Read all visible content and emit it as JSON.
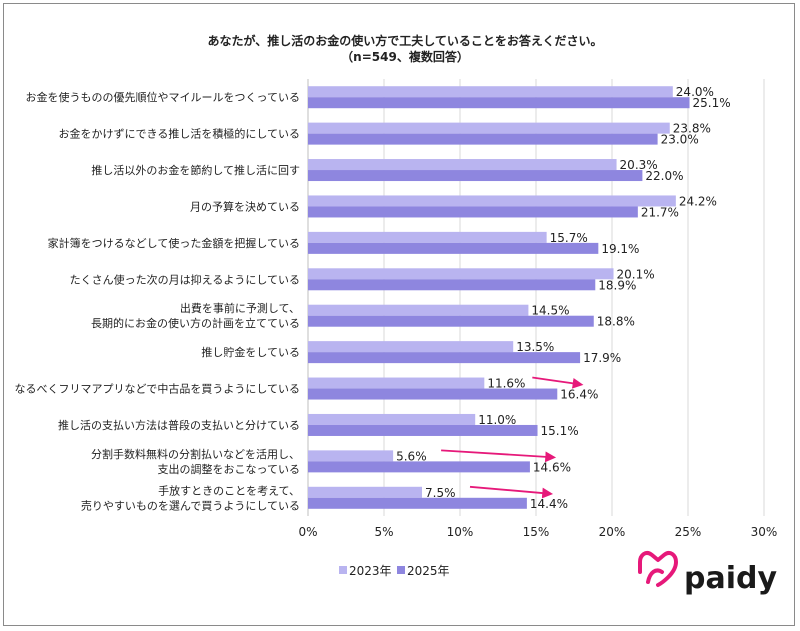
{
  "chart_data": {
    "type": "bar",
    "orientation": "horizontal",
    "title": "あなたが、推し活のお金の使い方で工夫していることをお答えください。",
    "subtitle": "（n=549、複数回答）",
    "categories": [
      [
        "お金を使うものの優先順位やマイルールをつくっている"
      ],
      [
        "お金をかけずにできる推し活を積極的にしている"
      ],
      [
        "推し活以外のお金を節約して推し活に回す"
      ],
      [
        "月の予算を決めている"
      ],
      [
        "家計簿をつけるなどして使った金額を把握している"
      ],
      [
        "たくさん使った次の月は抑えるようにしている"
      ],
      [
        "出費を事前に予測して、",
        "長期的にお金の使い方の計画を立てている"
      ],
      [
        "推し貯金をしている"
      ],
      [
        "なるべくフリマアプリなどで中古品を買うようにしている"
      ],
      [
        "推し活の支払い方法は普段の支払いと分けている"
      ],
      [
        "分割手数料無料の分割払いなどを活用し、",
        "支出の調整をおこなっている"
      ],
      [
        "手放すときのことを考えて、",
        "売りやすいものを選んで買うようにしている"
      ]
    ],
    "series": [
      {
        "name": "2023年",
        "color": "#b9b4f0",
        "values": [
          24.0,
          23.8,
          20.3,
          24.2,
          15.7,
          20.1,
          14.5,
          13.5,
          11.6,
          11.0,
          5.6,
          7.5
        ]
      },
      {
        "name": "2025年",
        "color": "#8e86df",
        "values": [
          25.1,
          23.0,
          22.0,
          21.7,
          19.1,
          18.9,
          18.8,
          17.9,
          16.4,
          15.1,
          14.6,
          14.4
        ]
      }
    ],
    "value_labels": [
      [
        "24.0%",
        "23.8%",
        "20.3%",
        "24.2%",
        "15.7%",
        "20.1%",
        "14.5%",
        "13.5%",
        "11.6%",
        "11.0%",
        "5.6%",
        "7.5%"
      ],
      [
        "25.1%",
        "23.0%",
        "22.0%",
        "21.7%",
        "19.1%",
        "18.9%",
        "18.8%",
        "17.9%",
        "16.4%",
        "15.1%",
        "14.6%",
        "14.4%"
      ]
    ],
    "xlim": [
      0,
      30
    ],
    "xticks": [
      "0%",
      "5%",
      "10%",
      "15%",
      "20%",
      "25%",
      "30%"
    ],
    "grid": "vertical",
    "legend": "bottom-center",
    "arrows_on_categories": [
      8,
      10,
      11
    ],
    "arrow_color": "#e6197a"
  },
  "brand": {
    "logo_text": "paidy",
    "logo_color": "#e6197a"
  }
}
